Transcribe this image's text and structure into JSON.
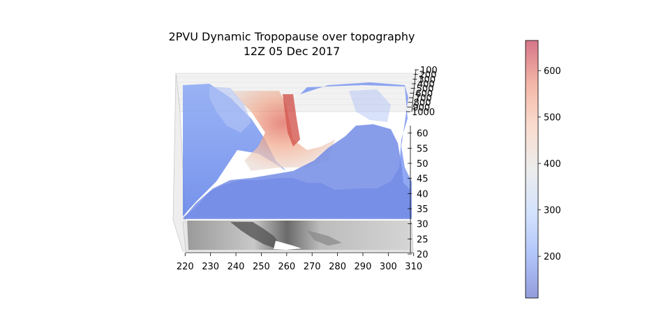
{
  "chart_data": {
    "type": "surface3d",
    "title_line1": "2PVU Dynamic Tropopause over topography",
    "title_line2": "12Z 05 Dec 2017",
    "xlabel": "",
    "ylabel": "",
    "zlabel": "",
    "x_ticks": [
      220,
      230,
      240,
      250,
      260,
      270,
      280,
      290,
      300,
      310
    ],
    "xlim": [
      218,
      312
    ],
    "y_ticks": [
      20,
      25,
      30,
      35,
      40,
      45,
      50,
      55,
      60
    ],
    "ylim": [
      20,
      62
    ],
    "z_ticks": [
      100,
      200,
      300,
      400,
      500,
      600,
      700,
      800,
      900,
      1000
    ],
    "zlim": [
      100,
      1000
    ],
    "surfaces": [
      {
        "name": "",
        "kind": "topography",
        "colormap": "gray"
      },
      {
        "name": "",
        "kind": "dynamic tropopause pressure (hPa)",
        "colormap": "coolwarm",
        "alpha": 0.5
      }
    ],
    "colorbar": {
      "ticks": [
        200,
        300,
        400,
        500,
        600
      ],
      "range": [
        110,
        665
      ],
      "colors": [
        "#3b4cc0",
        "#7396f5",
        "#b0cbfc",
        "#dddddd",
        "#f6bfa6",
        "#ea7b60",
        "#b40426"
      ]
    }
  }
}
